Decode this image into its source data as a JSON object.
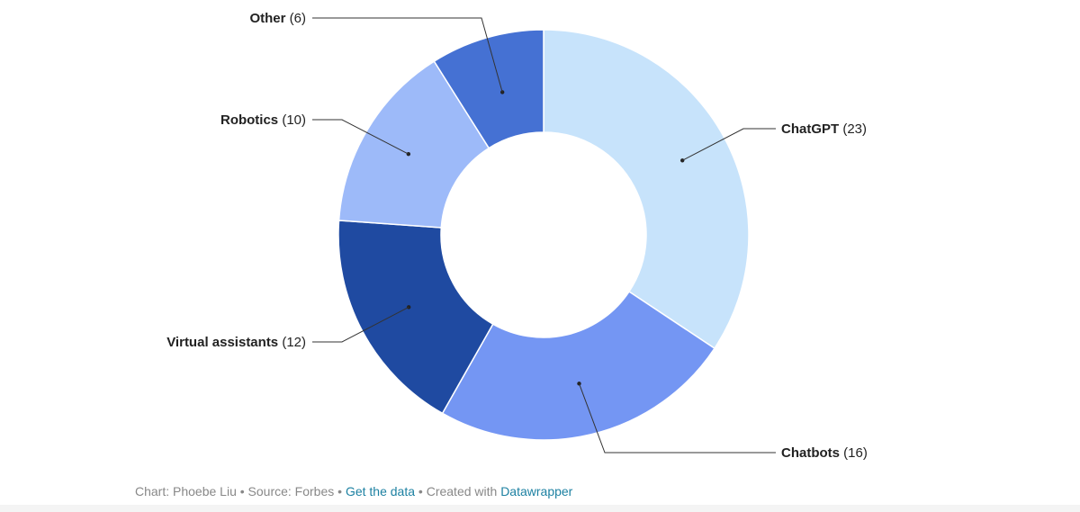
{
  "chart_data": {
    "type": "pie",
    "variant": "donut",
    "legend": "direct labels with leader lines",
    "slices": [
      {
        "label": "ChatGPT",
        "value": 23,
        "value_text": "(23)",
        "color": "#c7e3fb"
      },
      {
        "label": "Chatbots",
        "value": 16,
        "value_text": "(16)",
        "color": "#7496f3"
      },
      {
        "label": "Virtual assistants",
        "value": 12,
        "value_text": "(12)",
        "color": "#1f4aa1"
      },
      {
        "label": "Robotics",
        "value": 10,
        "value_text": "(10)",
        "color": "#9dbaf9"
      },
      {
        "label": "Other",
        "value": 6,
        "value_text": "(6)",
        "color": "#4571d3"
      }
    ]
  },
  "footer": {
    "chart_credit": "Chart: Phoebe Liu",
    "separator": "•",
    "source": "Source: Forbes",
    "get_data_link": "Get the data",
    "created_with": "Created with",
    "tool_link": "Datawrapper"
  },
  "colors": {
    "link": "#1d81a2",
    "footer_text": "#888888",
    "label_text": "#222222"
  }
}
